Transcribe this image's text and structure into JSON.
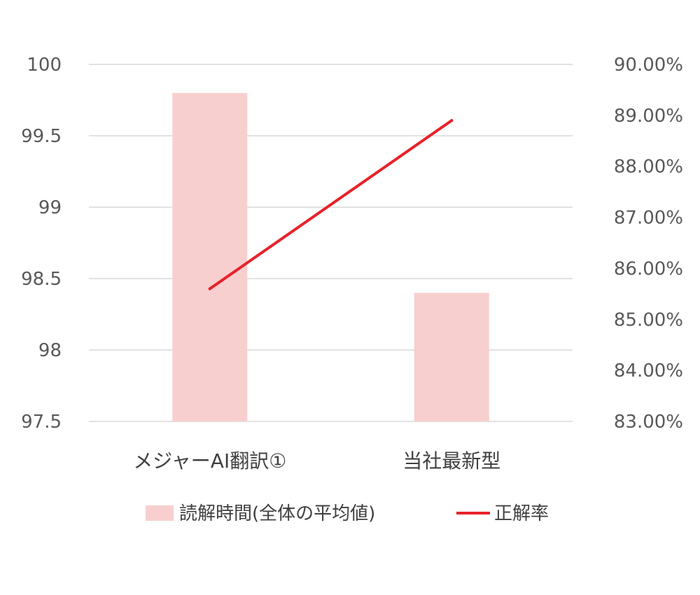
{
  "chart_data": {
    "type": "bar",
    "categories": [
      "メジャーAI翻訳①",
      "当社最新型"
    ],
    "series": [
      {
        "name": "読解時間(全体の平均値)",
        "type": "bar",
        "axis": "left",
        "values": [
          99.8,
          98.4
        ],
        "color": "#f8cfcf"
      },
      {
        "name": "正解率",
        "type": "line",
        "axis": "right",
        "values": [
          85.6,
          88.9
        ],
        "color": "#e8222a"
      }
    ],
    "y_left": {
      "min": 97.5,
      "max": 100,
      "ticks": [
        "97.5",
        "98",
        "98.5",
        "99",
        "99.5",
        "100"
      ]
    },
    "y_right": {
      "min": 83,
      "max": 90,
      "ticks": [
        "83.00%",
        "84.00%",
        "85.00%",
        "86.00%",
        "87.00%",
        "88.00%",
        "89.00%",
        "90.00%"
      ]
    },
    "grid": true,
    "legend_position": "bottom"
  }
}
